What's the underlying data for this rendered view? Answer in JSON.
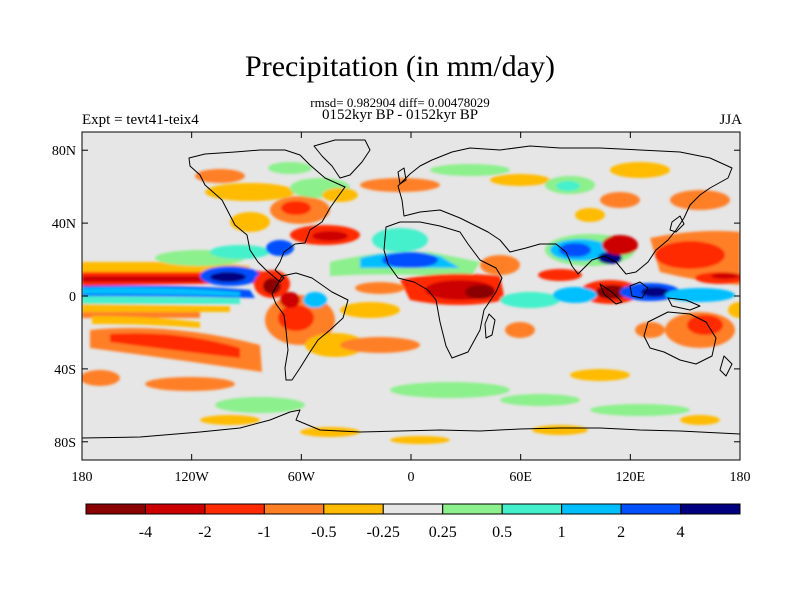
{
  "title": "Precipitation (in mm/day)",
  "stats_line": "rmsd= 0.982904  diff= 0.00478029",
  "period_line": "0152kyr BP - 0152kyr BP",
  "left_label": "Expt = tevt41-teix4",
  "right_label": "JJA",
  "lat_ticks": [
    {
      "value": 80,
      "label": "80N"
    },
    {
      "value": 40,
      "label": "40N"
    },
    {
      "value": 0,
      "label": "0"
    },
    {
      "value": -40,
      "label": "40S"
    },
    {
      "value": -80,
      "label": "80S"
    }
  ],
  "lon_ticks": [
    {
      "value": -180,
      "label": "180"
    },
    {
      "value": -120,
      "label": "120W"
    },
    {
      "value": -60,
      "label": "60W"
    },
    {
      "value": 0,
      "label": "0"
    },
    {
      "value": 60,
      "label": "60E"
    },
    {
      "value": 120,
      "label": "120E"
    },
    {
      "value": 180,
      "label": "180"
    }
  ],
  "colorbar": {
    "colors": [
      "#8b0000",
      "#cd0000",
      "#ff2a00",
      "#ff7f27",
      "#ffbb00",
      "#e6e6e6",
      "#8cf08c",
      "#44f0cc",
      "#00bfff",
      "#0050ff",
      "#000080"
    ],
    "labels": [
      "-4",
      "-2",
      "-1",
      "-0.5",
      "-0.25",
      "0.25",
      "0.5",
      "1",
      "2",
      "4"
    ]
  },
  "map_colors": {
    "background": "#e6e6e6",
    "coast": "#000000"
  }
}
